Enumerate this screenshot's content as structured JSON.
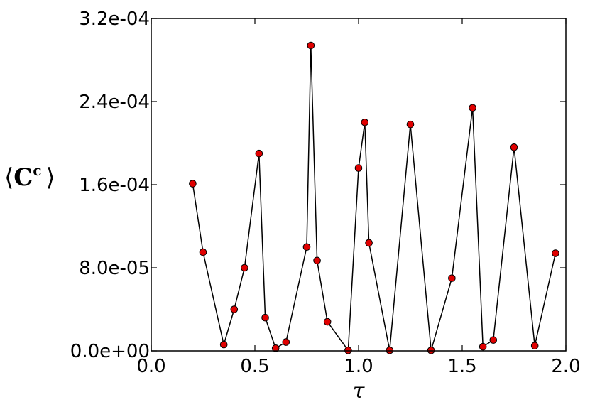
{
  "chart_data": {
    "type": "line",
    "xlabel": "τ",
    "ylabel": {
      "bracket_open": "⟨",
      "symbol": "C",
      "superscript": "c",
      "bracket_close": "⟩"
    },
    "xlim": [
      0.0,
      2.0
    ],
    "ylim": [
      0.0,
      0.00032
    ],
    "xticks": [
      0.0,
      0.5,
      1.0,
      1.5,
      2.0
    ],
    "xtick_labels": [
      "0.0",
      "0.5",
      "1.0",
      "1.5",
      "2.0"
    ],
    "yticks": [
      0.0,
      8e-05,
      0.00016,
      0.00024,
      0.00032
    ],
    "ytick_labels": [
      "0.0e+00",
      "8.0e-05",
      "1.6e-04",
      "2.4e-04",
      "3.2e-04"
    ],
    "grid": false,
    "series": [
      {
        "line_color": "#000000",
        "marker_color": "#e00000",
        "x": [
          0.2,
          0.25,
          0.35,
          0.4,
          0.45,
          0.52,
          0.55,
          0.6,
          0.65,
          0.75,
          0.77,
          0.8,
          0.85,
          0.95,
          1.0,
          1.03,
          1.05,
          1.15,
          1.25,
          1.35,
          1.45,
          1.55,
          1.6,
          1.65,
          1.75,
          1.85,
          1.95
        ],
        "y": [
          0.000161,
          9.5e-05,
          6.1e-06,
          4e-05,
          8e-05,
          0.00019,
          3.2e-05,
          2.5e-06,
          8.5e-06,
          0.0001,
          0.000294,
          8.7e-05,
          2.8e-05,
          5e-07,
          0.000176,
          0.00022,
          0.000104,
          5e-07,
          0.000218,
          5e-07,
          7e-05,
          0.000234,
          4e-06,
          1.05e-05,
          0.000196,
          5e-06,
          9.4e-05
        ]
      }
    ]
  }
}
